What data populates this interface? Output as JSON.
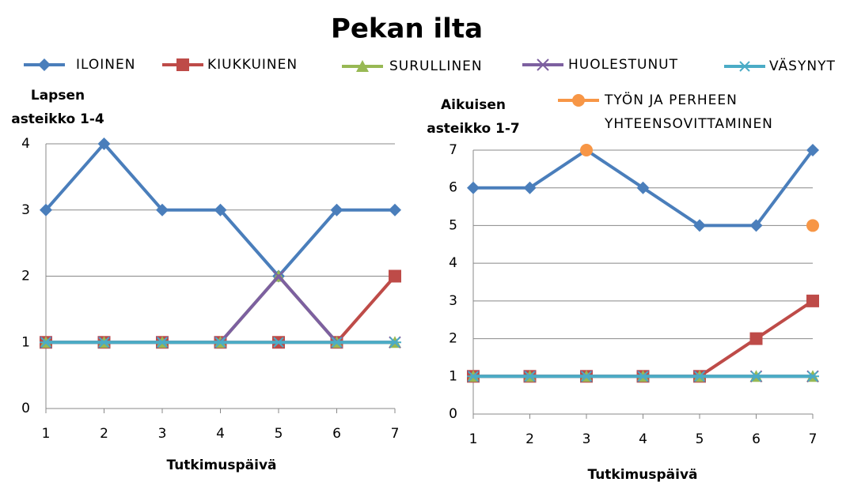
{
  "title": "Pekan ilta",
  "legend": [
    {
      "name": "ILOINEN",
      "color": "#4a7ebb",
      "marker": "diamond"
    },
    {
      "name": "KIUKKUINEN",
      "color": "#be4b48",
      "marker": "square"
    },
    {
      "name": "SURULLINEN",
      "color": "#98b954",
      "marker": "triangle"
    },
    {
      "name": "HUOLESTUNUT",
      "color": "#7d60a0",
      "marker": "x"
    },
    {
      "name": "VÄSYNYT",
      "color": "#4bacc6",
      "marker": "star"
    },
    {
      "name": "TYÖN JA PERHEEN YHTEENSOVITTAMINEN",
      "color": "#f79646",
      "marker": "circle"
    }
  ],
  "chart_data": [
    {
      "type": "line",
      "y_label": "Lapsen asteikko 1-4",
      "x_label": "Tutkimuspäivä",
      "categories": [
        "1",
        "2",
        "3",
        "4",
        "5",
        "6",
        "7"
      ],
      "ylim": [
        0,
        4
      ],
      "yticks": [
        0,
        1,
        2,
        3,
        4
      ],
      "grid": true,
      "series": [
        {
          "values": [
            3,
            4,
            3,
            3,
            2,
            3,
            3
          ]
        },
        {
          "values": [
            1,
            1,
            1,
            1,
            1,
            1,
            2
          ]
        },
        {
          "values": [
            1,
            1,
            1,
            1,
            2,
            1,
            1
          ]
        },
        {
          "values": [
            1,
            1,
            1,
            1,
            2,
            1,
            1
          ]
        },
        {
          "values": [
            1,
            1,
            1,
            1,
            1,
            1,
            1
          ]
        }
      ]
    },
    {
      "type": "line",
      "y_label": "Aikuisen asteikko 1-7",
      "x_label": "Tutkimuspäivä",
      "categories": [
        "1",
        "2",
        "3",
        "4",
        "5",
        "6",
        "7"
      ],
      "ylim": [
        0,
        7
      ],
      "yticks": [
        0,
        1,
        2,
        3,
        4,
        5,
        6,
        7
      ],
      "grid": true,
      "series": [
        {
          "values": [
            6,
            6,
            7,
            6,
            5,
            5,
            7
          ]
        },
        {
          "values": [
            1,
            1,
            1,
            1,
            1,
            2,
            3
          ]
        },
        {
          "values": [
            1,
            1,
            1,
            1,
            1,
            1,
            1
          ]
        },
        {
          "values": [
            1,
            1,
            1,
            1,
            1,
            1,
            1
          ]
        },
        {
          "values": [
            1,
            1,
            1,
            1,
            1,
            1,
            1
          ]
        },
        {
          "values": [
            null,
            null,
            7,
            null,
            null,
            null,
            5
          ],
          "line": false
        }
      ]
    }
  ]
}
